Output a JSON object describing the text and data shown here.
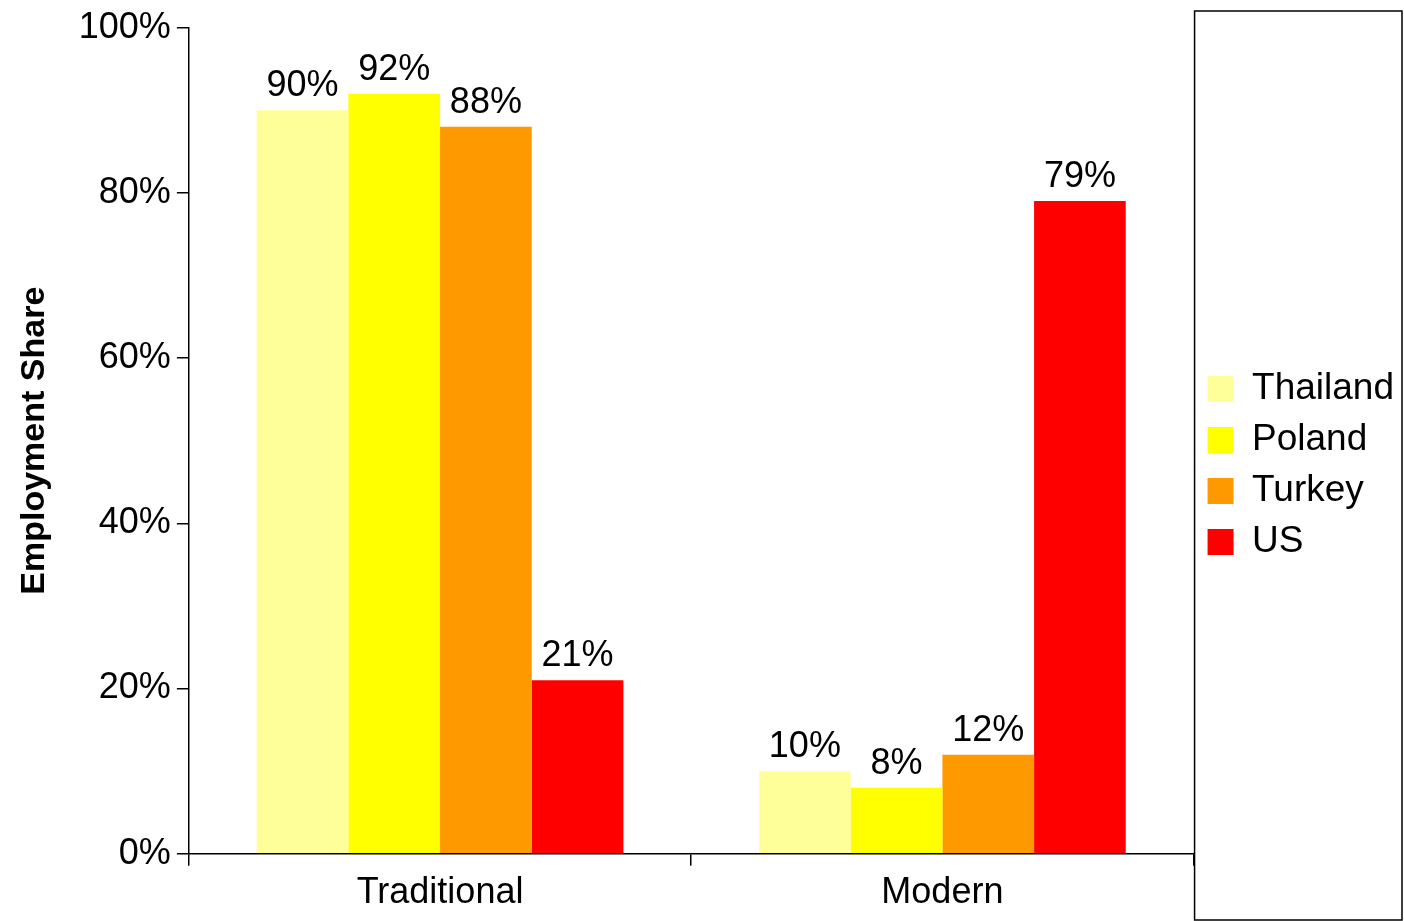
{
  "chart_data": {
    "type": "bar",
    "ylabel": "Employment Share",
    "categories": [
      "Traditional",
      "Modern"
    ],
    "series": [
      {
        "name": "Thailand",
        "color": "#ffff99",
        "values": [
          90,
          10
        ],
        "value_labels": [
          "90%",
          "10%"
        ]
      },
      {
        "name": "Poland",
        "color": "#ffff00",
        "values": [
          92,
          8
        ],
        "value_labels": [
          "92%",
          "8%"
        ]
      },
      {
        "name": "Turkey",
        "color": "#ff9900",
        "values": [
          88,
          12
        ],
        "value_labels": [
          "88%",
          "12%"
        ]
      },
      {
        "name": "US",
        "color": "#ff0000",
        "values": [
          21,
          79
        ],
        "value_labels": [
          "21%",
          "79%"
        ]
      }
    ],
    "ylim": [
      0,
      100
    ],
    "yticks": [
      {
        "value": 0,
        "label": "0%"
      },
      {
        "value": 20,
        "label": "20%"
      },
      {
        "value": 40,
        "label": "40%"
      },
      {
        "value": 60,
        "label": "60%"
      },
      {
        "value": 80,
        "label": "80%"
      },
      {
        "value": 100,
        "label": "100%"
      }
    ],
    "grid": false,
    "legend": "right"
  }
}
